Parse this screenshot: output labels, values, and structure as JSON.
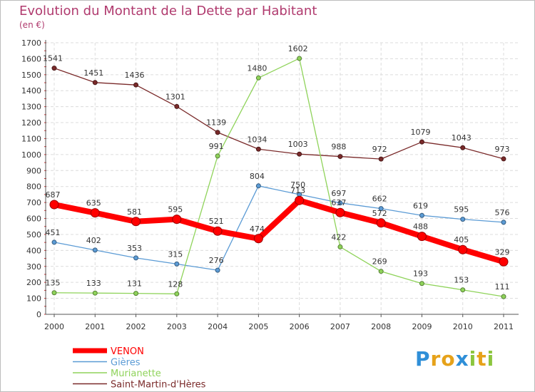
{
  "chart_data": {
    "type": "line",
    "title": "Evolution du Montant de la Dette par Habitant",
    "subtitle": "(en €)",
    "xlabel": "",
    "ylabel": "",
    "x": [
      "2000",
      "2001",
      "2002",
      "2003",
      "2004",
      "2005",
      "2006",
      "2007",
      "2008",
      "2009",
      "2010",
      "2011"
    ],
    "ylim": [
      0,
      1700
    ],
    "yticks": [
      0,
      100,
      200,
      300,
      400,
      500,
      600,
      700,
      800,
      900,
      1000,
      1100,
      1200,
      1300,
      1400,
      1500,
      1600,
      1700
    ],
    "grid": true,
    "legend_position": "bottom-left",
    "series": [
      {
        "name": "VENON",
        "color": "#ff0000",
        "width": 8,
        "marker": 6,
        "values": [
          687,
          635,
          581,
          595,
          521,
          474,
          713,
          637,
          572,
          488,
          405,
          329
        ]
      },
      {
        "name": "Gières",
        "color": "#5b9bd5",
        "width": 1.3,
        "marker": 3,
        "values": [
          451,
          402,
          353,
          315,
          276,
          804,
          750,
          697,
          662,
          619,
          595,
          576
        ]
      },
      {
        "name": "Murianette",
        "color": "#8fd35a",
        "width": 1.3,
        "marker": 3,
        "values": [
          135,
          133,
          131,
          128,
          991,
          1480,
          1602,
          422,
          269,
          193,
          153,
          111
        ]
      },
      {
        "name": "Saint-Martin-d'Hères",
        "color": "#7a2a2a",
        "width": 1.3,
        "marker": 3,
        "values": [
          1541,
          1451,
          1436,
          1301,
          1139,
          1034,
          1003,
          988,
          972,
          1079,
          1043,
          973
        ]
      }
    ]
  },
  "logo": {
    "letters": [
      "P",
      "r",
      "o",
      "x",
      "i",
      "t",
      "i"
    ],
    "colors": [
      "#2f8fd8",
      "#e6a21a",
      "#e6a21a",
      "#2f8fd8",
      "#8cc63e",
      "#e6a21a",
      "#8cc63e"
    ]
  }
}
